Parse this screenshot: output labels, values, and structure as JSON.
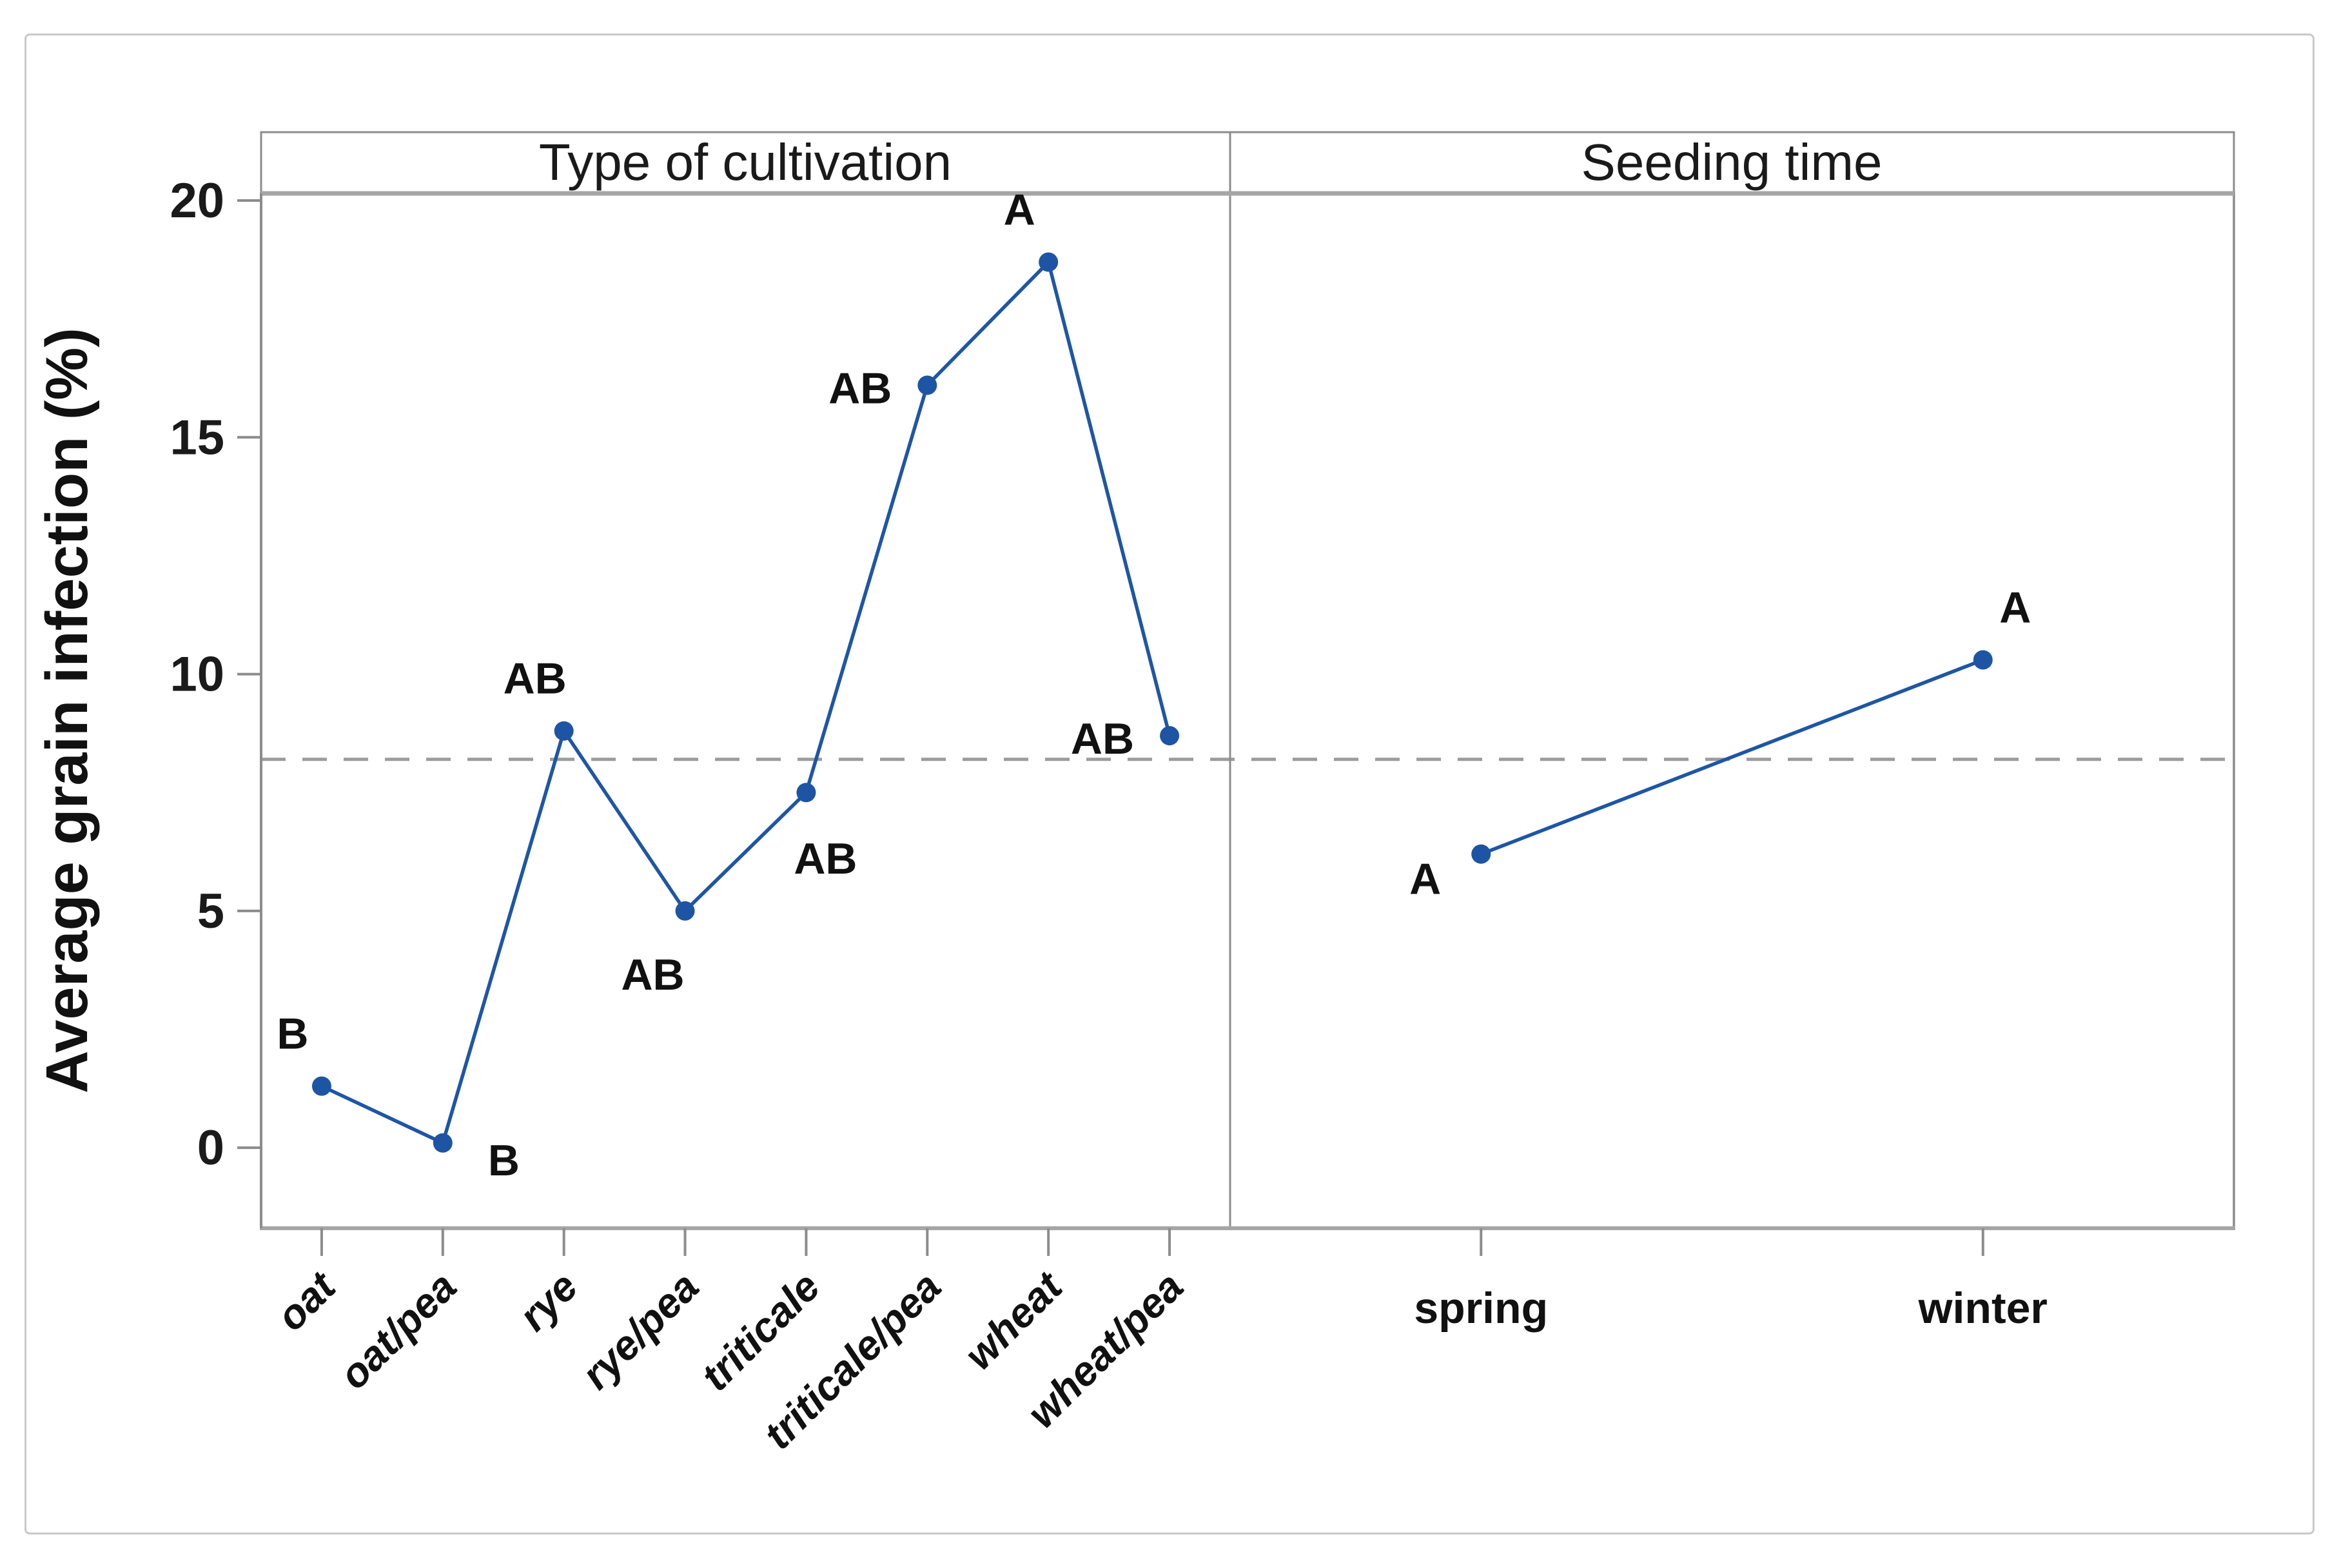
{
  "figure": {
    "background": "#ffffff",
    "border_color": "#c9c9c9"
  },
  "chart_data": {
    "type": "line",
    "ylabel": "Average grain infection (%)",
    "yticks": [
      0,
      5,
      10,
      15,
      20
    ],
    "ylim": [
      -1.7,
      20.15
    ],
    "reference_line": 8.2,
    "grid": false,
    "legend": "none",
    "panels": [
      {
        "title": "Type of cultivation",
        "categories": [
          "oat",
          "oat/pea",
          "rye",
          "rye/pea",
          "triticale",
          "triticale/pea",
          "wheat",
          "wheat/pea"
        ],
        "values": [
          1.3,
          0.1,
          8.8,
          5.0,
          7.5,
          16.1,
          18.7,
          8.7
        ],
        "point_labels": [
          "B",
          "B",
          "AB",
          "AB",
          "AB",
          "AB",
          "A",
          "AB"
        ],
        "label_placements": [
          "above-left",
          "right",
          "above-left",
          "below-left",
          "below-right",
          "left",
          "above-left",
          "left"
        ],
        "tick_label_style": "rotated-45-bold-italic"
      },
      {
        "title": "Seeding time",
        "categories": [
          "spring",
          "winter"
        ],
        "values": [
          6.2,
          10.3
        ],
        "point_labels": [
          "A",
          "A"
        ],
        "label_placements": [
          "left-down",
          "above-right"
        ],
        "tick_label_style": "horizontal-bold"
      }
    ],
    "colors": {
      "series": "#1e56a5",
      "marker": "#1d55a4",
      "reference_line": "#9c9c9c",
      "frame": "#8c8c8c",
      "frame_heavy": "#a6a6a6",
      "text": "#1a1a1a"
    }
  }
}
